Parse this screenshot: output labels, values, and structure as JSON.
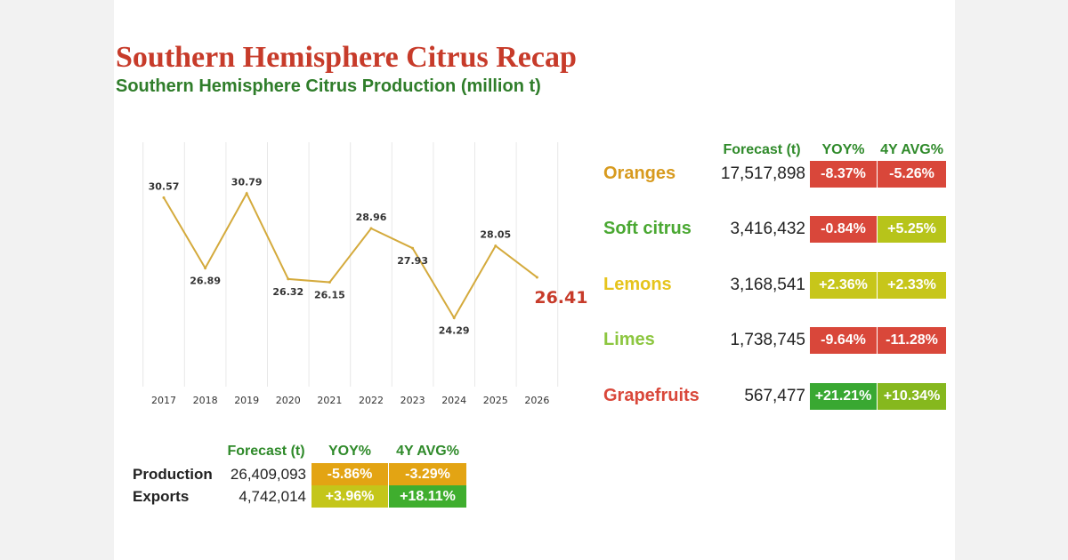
{
  "title": "Southern Hemisphere Citrus Recap",
  "subtitle": "Southern Hemisphere Citrus Production (million t)",
  "chart_data": {
    "type": "line",
    "x": [
      "2017",
      "2018",
      "2019",
      "2020",
      "2021",
      "2022",
      "2023",
      "2024",
      "2025",
      "2026"
    ],
    "series": [
      {
        "values": [
          30.57,
          26.89,
          30.79,
          26.32,
          26.15,
          28.96,
          27.93,
          24.29,
          28.05,
          26.41
        ],
        "labels": [
          "30.57",
          "26.89",
          "30.79",
          "26.32",
          "26.15",
          "28.96",
          "27.93",
          "24.29",
          "28.05",
          "26.41"
        ]
      }
    ],
    "ylim": [
      20,
      33
    ],
    "grid": "vertical",
    "line_color": "#d4aa3c",
    "highlight_color": "#c73b2a"
  },
  "fruit_table": {
    "headers": [
      "Forecast (t)",
      "YOY%",
      "4Y AVG%"
    ],
    "rows": [
      {
        "name": "Oranges",
        "name_color": "#d79a1e",
        "forecast": "17,517,898",
        "yoy": "-8.37%",
        "yoy_color": "#d9473a",
        "avg": "-5.26%",
        "avg_color": "#d9473a"
      },
      {
        "name": "Soft citrus",
        "name_color": "#4aa832",
        "forecast": "3,416,432",
        "yoy": "-0.84%",
        "yoy_color": "#d9473a",
        "avg": "+5.25%",
        "avg_color": "#b7c41a"
      },
      {
        "name": "Lemons",
        "name_color": "#e6c41c",
        "forecast": "3,168,541",
        "yoy": "+2.36%",
        "yoy_color": "#c7c61a",
        "avg": "+2.33%",
        "avg_color": "#c7c61a"
      },
      {
        "name": "Limes",
        "name_color": "#8cc63f",
        "forecast": "1,738,745",
        "yoy": "-9.64%",
        "yoy_color": "#d9473a",
        "avg": "-11.28%",
        "avg_color": "#d9473a"
      },
      {
        "name": "Grapefruits",
        "name_color": "#d9473a",
        "forecast": "567,477",
        "yoy": "+21.21%",
        "yoy_color": "#39a832",
        "avg": "+10.34%",
        "avg_color": "#86b81e"
      }
    ]
  },
  "summary_table": {
    "headers": [
      "Forecast (t)",
      "YOY%",
      "4Y AVG%"
    ],
    "rows": [
      {
        "label": "Production",
        "forecast": "26,409,093",
        "yoy": "-5.86%",
        "yoy_color": "#e3a413",
        "avg": "-3.29%",
        "avg_color": "#e3a413"
      },
      {
        "label": "Exports",
        "forecast": "4,742,014",
        "yoy": "+3.96%",
        "yoy_color": "#c4c61a",
        "avg": "+18.11%",
        "avg_color": "#3fae2e"
      }
    ]
  }
}
